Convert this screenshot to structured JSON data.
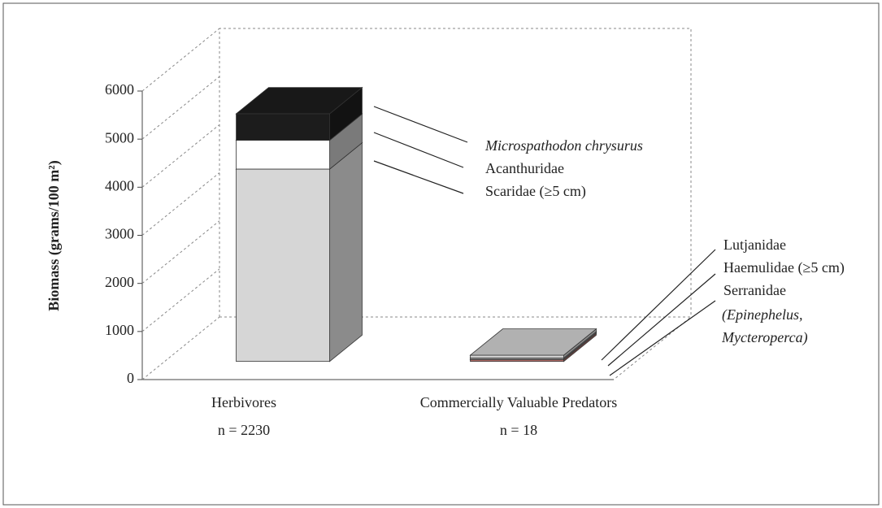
{
  "chart_data": {
    "type": "bar3d-stacked",
    "y_label": "Biomass (grams/100 m²)",
    "categories": [
      "Herbivores",
      "Commercially Valuable Predators"
    ],
    "category_notes": [
      "n = 2230",
      "n = 18"
    ],
    "series": [
      {
        "name": "Scaridae (≥5 cm)",
        "color": "#d6d6d6",
        "values": [
          4000,
          null
        ]
      },
      {
        "name": "Acanthuridae",
        "color": "#ffffff",
        "values": [
          600,
          null
        ]
      },
      {
        "name": "Microspathodon chrysurus",
        "italic": true,
        "color": "#1c1c1c",
        "values": [
          550,
          null
        ]
      },
      {
        "name": "Serranidae",
        "name_detail": "(Epinephelus, Mycteroperca)",
        "color": "#b36f69",
        "values": [
          null,
          40
        ]
      },
      {
        "name": "Haemulidae (≥5 cm)",
        "color": "#9a9a9a",
        "values": [
          null,
          30
        ]
      },
      {
        "name": "Lutjanidae",
        "color": "#d0d0d0",
        "values": [
          null,
          60
        ]
      }
    ],
    "ylim": [
      0,
      6000
    ],
    "yticks": [
      0,
      1000,
      2000,
      3000,
      4000,
      5000,
      6000
    ]
  }
}
